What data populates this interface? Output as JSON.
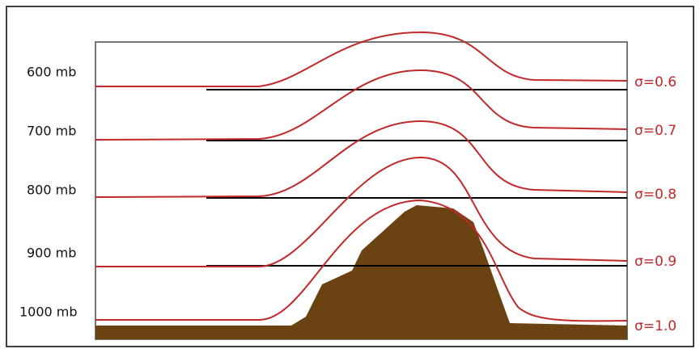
{
  "pressure_levels": [
    "600 mb",
    "700 mb",
    "800 mb",
    "900 mb",
    "1000 mb"
  ],
  "sigma_levels": [
    "σ=0.6",
    "σ=0.7",
    "σ=0.8",
    "σ=0.9",
    "σ=1.0"
  ]
}
